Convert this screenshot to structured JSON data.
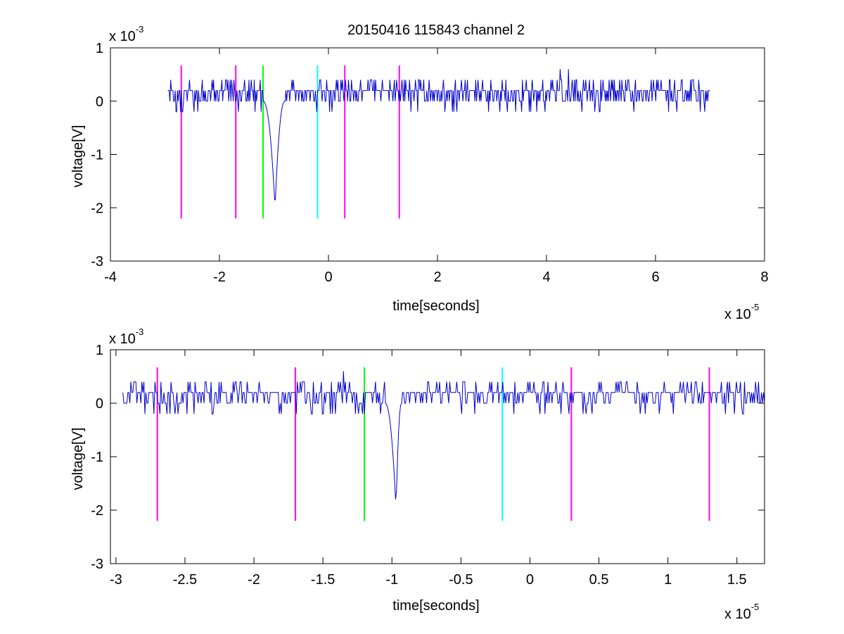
{
  "figure_title": "20150416 115843 channel 2",
  "chart_data": [
    {
      "type": "line",
      "title": "20150416 115843 channel 2",
      "xlabel": "time[seconds]",
      "ylabel": "voltage[V]",
      "x_exponent": "x 10",
      "x_exponent_power": "-5",
      "y_exponent": "x 10",
      "y_exponent_power": "-3",
      "xlim": [
        -4,
        8
      ],
      "ylim": [
        -3,
        1
      ],
      "xticks": [
        -4,
        -2,
        0,
        2,
        4,
        6,
        8
      ],
      "xtick_labels": [
        "-4",
        "-2",
        "0",
        "2",
        "4",
        "6",
        "8"
      ],
      "yticks": [
        -3,
        -2,
        -1,
        0,
        1
      ],
      "ytick_labels": [
        "-3",
        "-2",
        "-1",
        "0",
        "1"
      ],
      "grid": false,
      "series": [
        {
          "color": "#0000cc",
          "x_range": [
            -2.95,
            7.0
          ],
          "baseline_levels": [
            0,
            0.2,
            0.4
          ],
          "noise_upper_peaks": [
            [
              4.25,
              0.6
            ],
            [
              4.4,
              0.6
            ],
            [
              5.25,
              0.4
            ],
            [
              5.5,
              0.4
            ],
            [
              6.7,
              0.4
            ]
          ],
          "noise_lower_peaks": [
            [
              -2.8,
              -0.2
            ],
            [
              -1.65,
              -0.2
            ],
            [
              6.9,
              -0.2
            ]
          ],
          "spike": {
            "x": -0.98,
            "y": -2.0,
            "start": -1.2,
            "end": -0.8
          }
        }
      ],
      "markers": [
        {
          "x": -2.7,
          "color": "#ff00ff",
          "ymin": -2.2,
          "ymax": 0.67
        },
        {
          "x": -1.7,
          "color": "#ff00ff",
          "ymin": -2.2,
          "ymax": 0.67
        },
        {
          "x": -1.2,
          "color": "#00ff00",
          "ymin": -2.2,
          "ymax": 0.67
        },
        {
          "x": -0.2,
          "color": "#00ffff",
          "ymin": -2.2,
          "ymax": 0.67
        },
        {
          "x": 0.3,
          "color": "#ff00ff",
          "ymin": -2.2,
          "ymax": 0.67
        },
        {
          "x": 1.3,
          "color": "#ff00ff",
          "ymin": -2.2,
          "ymax": 0.67
        }
      ]
    },
    {
      "type": "line",
      "title": "",
      "xlabel": "time[seconds]",
      "ylabel": "voltage[V]",
      "x_exponent": "x 10",
      "x_exponent_power": "-5",
      "y_exponent": "x 10",
      "y_exponent_power": "-3",
      "xlim": [
        -3.04,
        1.7
      ],
      "ylim": [
        -3,
        1
      ],
      "xticks": [
        -3,
        -2.5,
        -2,
        -1.5,
        -1,
        -0.5,
        0,
        0.5,
        1,
        1.5
      ],
      "xtick_labels": [
        "-3",
        "-2.5",
        "-2",
        "-1.5",
        "-1",
        "-0.5",
        "0",
        "0.5",
        "1",
        "1.5"
      ],
      "yticks": [
        -3,
        -2,
        -1,
        0,
        1
      ],
      "ytick_labels": [
        "-3",
        "-2",
        "-1",
        "0",
        "1"
      ],
      "grid": false,
      "series": [
        {
          "color": "#0000cc",
          "x_range": [
            -2.95,
            1.7
          ],
          "baseline_levels": [
            0,
            0.2,
            0.4
          ],
          "noise_upper_peaks": [
            [
              -1.35,
              0.6
            ],
            [
              -2.6,
              0.4
            ],
            [
              -2.35,
              0.4
            ],
            [
              -2.05,
              0.4
            ]
          ],
          "noise_lower_peaks": [
            [
              -2.55,
              -0.2
            ],
            [
              -2.3,
              -0.2
            ],
            [
              -1.5,
              -0.2
            ],
            [
              1.55,
              -0.2
            ]
          ],
          "spike": {
            "x": -0.97,
            "y": -2.0,
            "start": -1.05,
            "end": -0.93
          }
        }
      ],
      "markers": [
        {
          "x": -2.7,
          "color": "#ff00ff",
          "ymin": -2.2,
          "ymax": 0.67
        },
        {
          "x": -1.7,
          "color": "#ff00ff",
          "ymin": -2.2,
          "ymax": 0.67
        },
        {
          "x": -1.2,
          "color": "#00ff00",
          "ymin": -2.2,
          "ymax": 0.67
        },
        {
          "x": -0.2,
          "color": "#00ffff",
          "ymin": -2.2,
          "ymax": 0.67
        },
        {
          "x": 0.3,
          "color": "#ff00ff",
          "ymin": -2.2,
          "ymax": 0.67
        },
        {
          "x": 1.3,
          "color": "#ff00ff",
          "ymin": -2.2,
          "ymax": 0.67
        }
      ]
    }
  ]
}
